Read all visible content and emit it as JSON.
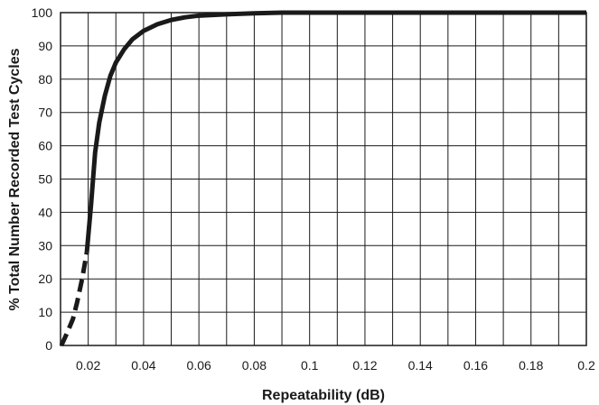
{
  "chart_data": {
    "type": "line",
    "title": "",
    "xlabel": "Repeatability (dB)",
    "ylabel": "% Total Number Recorded Test Cycles",
    "xlim": [
      0.01,
      0.2
    ],
    "ylim": [
      0,
      100
    ],
    "grid": true,
    "x_ticks": [
      {
        "value": 0.02,
        "label": "0.02"
      },
      {
        "value": 0.04,
        "label": "0.04"
      },
      {
        "value": 0.06,
        "label": "0.06"
      },
      {
        "value": 0.08,
        "label": "0.08"
      },
      {
        "value": 0.1,
        "label": "0.1"
      },
      {
        "value": 0.12,
        "label": "0.12"
      },
      {
        "value": 0.14,
        "label": "0.14"
      },
      {
        "value": 0.16,
        "label": "0.16"
      },
      {
        "value": 0.18,
        "label": "0.18"
      },
      {
        "value": 0.2,
        "label": "0.2"
      }
    ],
    "y_ticks": [
      0,
      10,
      20,
      30,
      40,
      50,
      60,
      70,
      80,
      90,
      100
    ],
    "series": [
      {
        "style": "dashed",
        "color": "#1a1a1a",
        "points": [
          {
            "x": 0.0103,
            "y": 0
          },
          {
            "x": 0.0125,
            "y": 4
          },
          {
            "x": 0.0145,
            "y": 8
          },
          {
            "x": 0.016,
            "y": 13
          },
          {
            "x": 0.0178,
            "y": 20
          },
          {
            "x": 0.0195,
            "y": 28
          }
        ]
      },
      {
        "style": "solid",
        "color": "#1a1a1a",
        "points": [
          {
            "x": 0.0195,
            "y": 28
          },
          {
            "x": 0.021,
            "y": 42
          },
          {
            "x": 0.0225,
            "y": 58
          },
          {
            "x": 0.024,
            "y": 67
          },
          {
            "x": 0.026,
            "y": 75
          },
          {
            "x": 0.028,
            "y": 81
          },
          {
            "x": 0.03,
            "y": 85
          },
          {
            "x": 0.033,
            "y": 89
          },
          {
            "x": 0.036,
            "y": 92
          },
          {
            "x": 0.04,
            "y": 94.5
          },
          {
            "x": 0.045,
            "y": 96.5
          },
          {
            "x": 0.05,
            "y": 97.8
          },
          {
            "x": 0.055,
            "y": 98.6
          },
          {
            "x": 0.06,
            "y": 99.1
          },
          {
            "x": 0.07,
            "y": 99.5
          },
          {
            "x": 0.08,
            "y": 99.8
          },
          {
            "x": 0.09,
            "y": 100
          },
          {
            "x": 0.1,
            "y": 100
          },
          {
            "x": 0.12,
            "y": 100
          },
          {
            "x": 0.15,
            "y": 100
          },
          {
            "x": 0.2,
            "y": 100
          }
        ]
      }
    ]
  }
}
